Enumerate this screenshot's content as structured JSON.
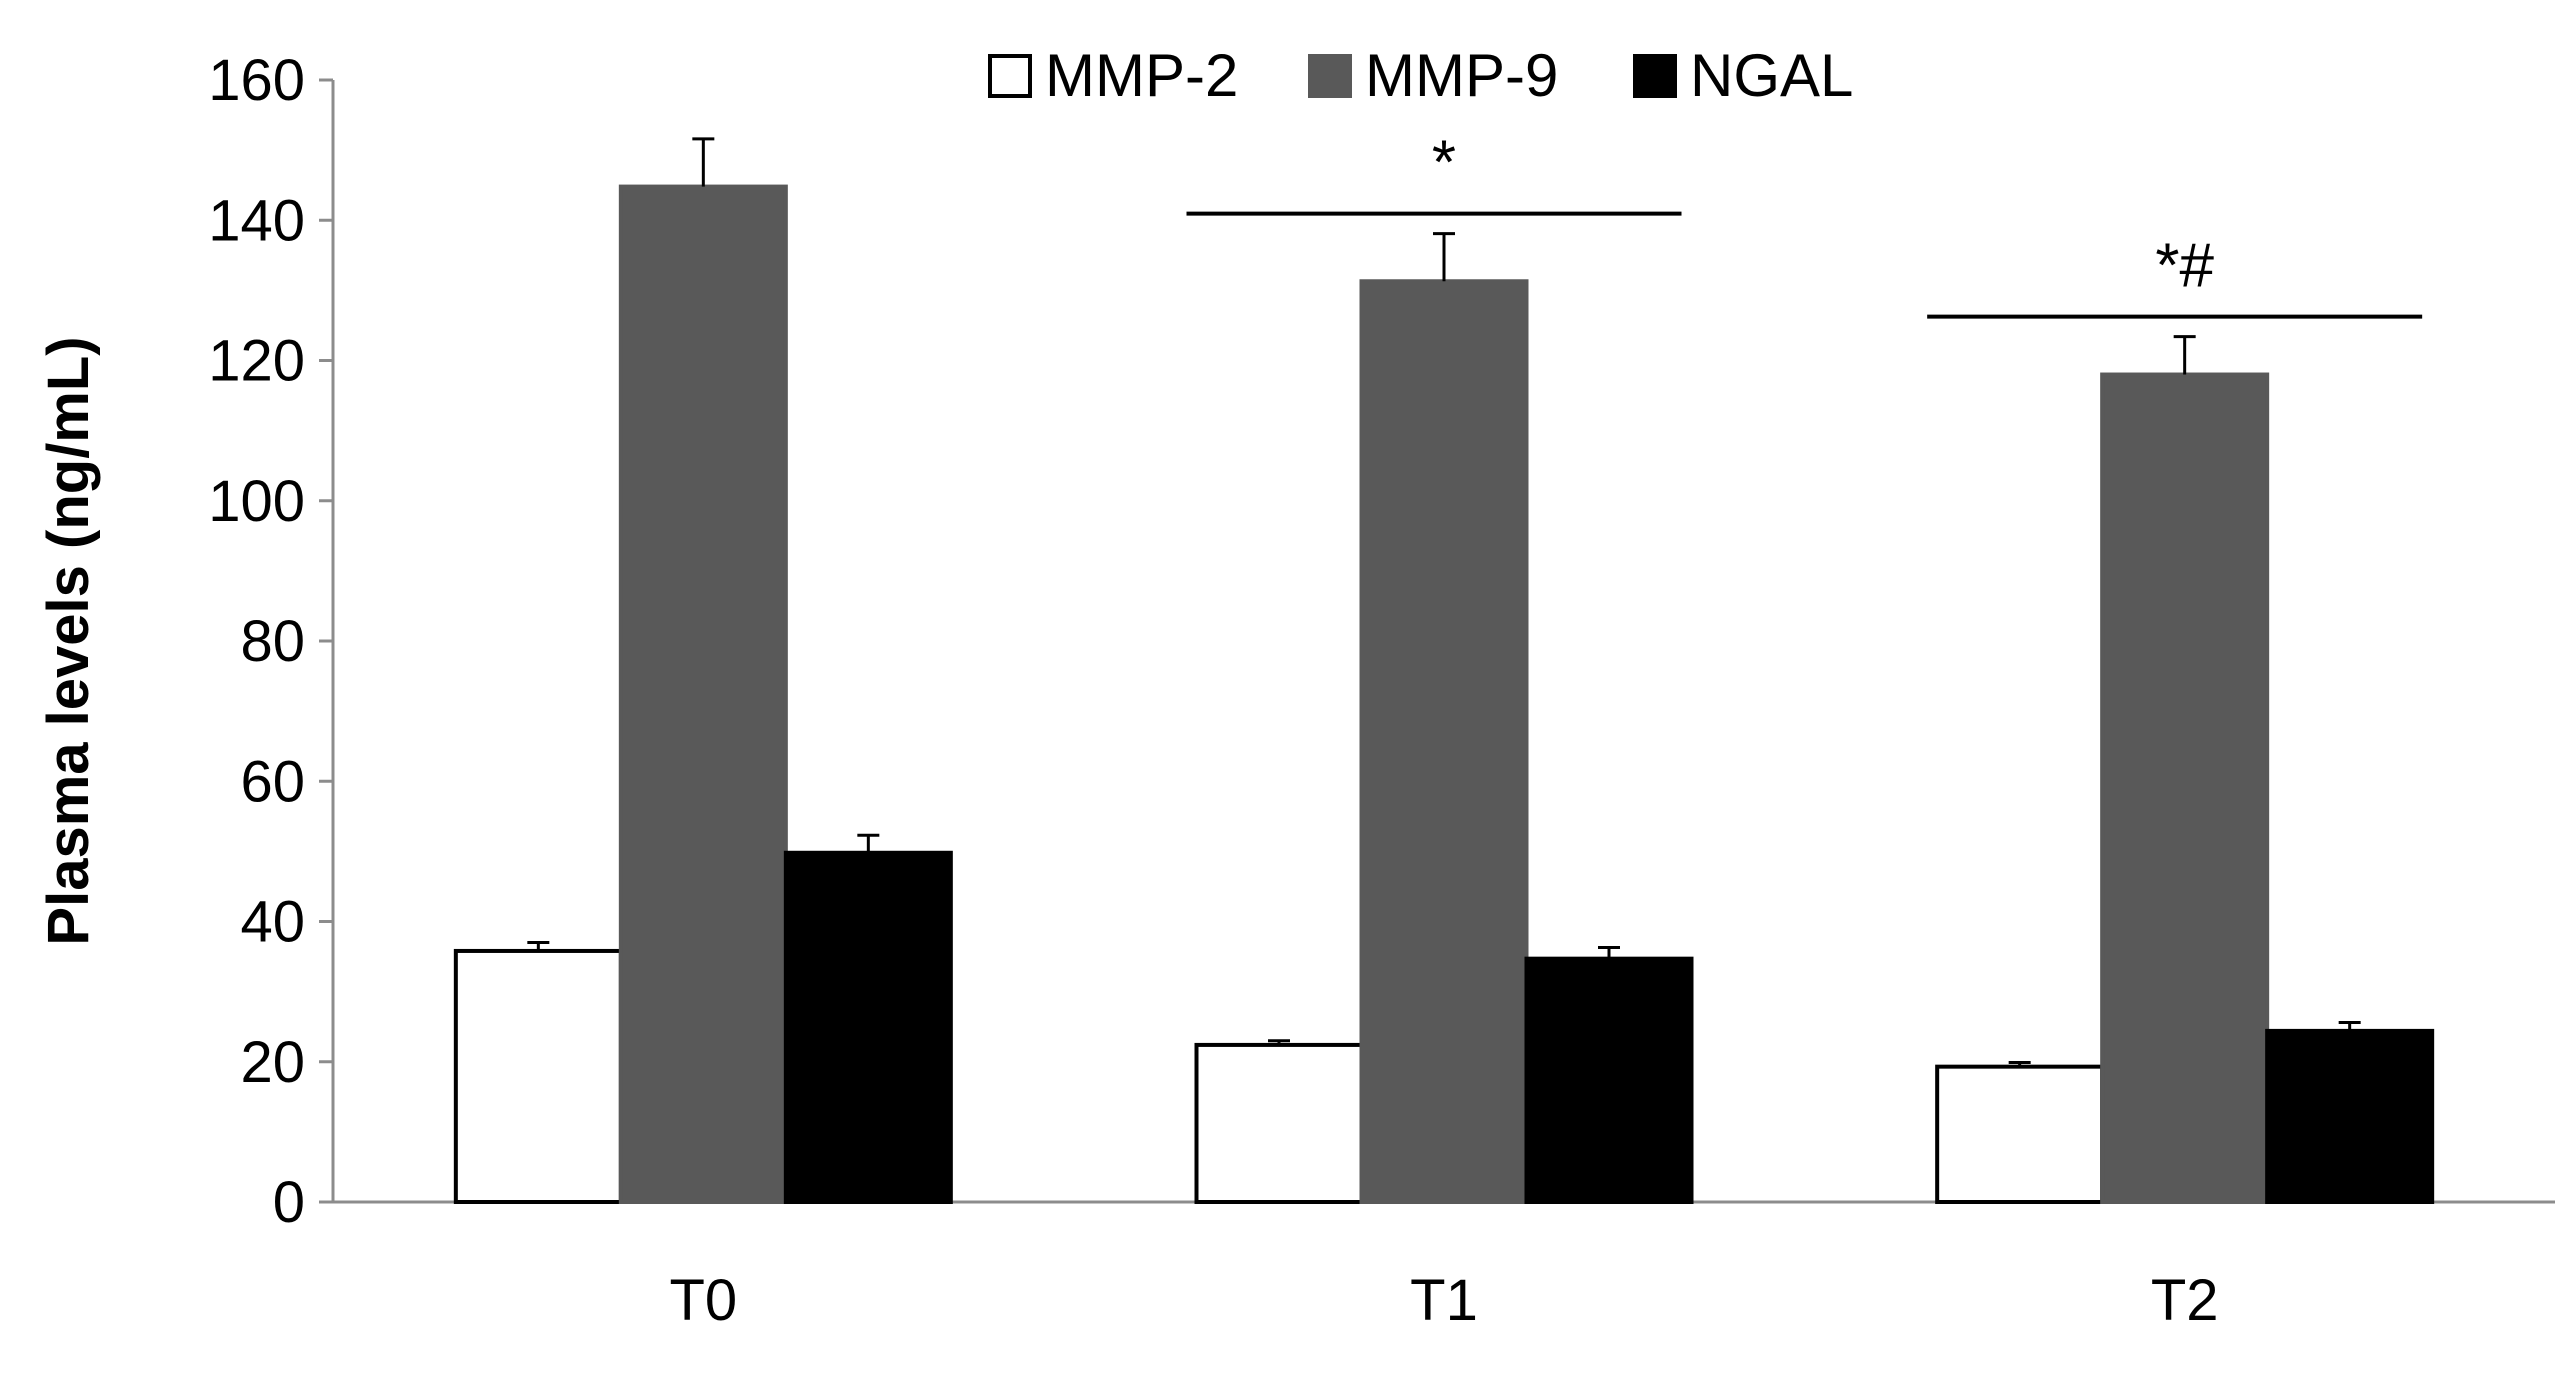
{
  "chart_data": {
    "type": "bar",
    "title": "",
    "xlabel": "",
    "ylabel": "Plasma levels (ng/mL)",
    "categories": [
      "T0",
      "T1",
      "T2"
    ],
    "ylim": [
      0,
      160
    ],
    "yticks": [
      0,
      20,
      40,
      60,
      80,
      100,
      120,
      140,
      160
    ],
    "grid": false,
    "legend_position": "top-center",
    "series": [
      {
        "name": "MMP-2",
        "color": "#ffffff",
        "edge": "#000000",
        "values": [
          35.8,
          22.4,
          19.3
        ],
        "errors": [
          1.2,
          0.6,
          0.6
        ]
      },
      {
        "name": "MMP-9",
        "color": "#595959",
        "edge": "#595959",
        "values": [
          144.8,
          131.3,
          118.0
        ],
        "errors": [
          6.8,
          6.8,
          5.4
        ]
      },
      {
        "name": "NGAL",
        "color": "#000000",
        "edge": "#000000",
        "values": [
          49.8,
          34.7,
          24.4
        ],
        "errors": [
          2.5,
          1.6,
          1.2
        ]
      }
    ],
    "annotations": [
      {
        "category": "T1",
        "text": "*"
      },
      {
        "category": "T2",
        "text": "*#"
      }
    ]
  }
}
